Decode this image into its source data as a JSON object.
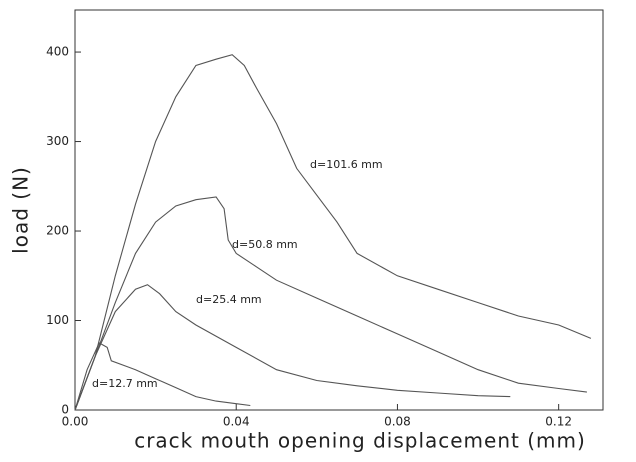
{
  "chart_data": {
    "type": "line",
    "xlabel": "crack mouth opening displacement (mm)",
    "ylabel": "load (N)",
    "xlim": [
      0,
      0.131
    ],
    "ylim": [
      0,
      447
    ],
    "xticks": [
      {
        "value": 0,
        "label": "0.00"
      },
      0.04,
      0.08,
      0.12
    ],
    "yticks": [
      0,
      100,
      200,
      300,
      400
    ],
    "grid": false,
    "series": [
      {
        "name": "d=101.6 mm",
        "color": "#555555",
        "x": [
          0,
          0.005,
          0.01,
          0.015,
          0.02,
          0.025,
          0.03,
          0.035,
          0.039,
          0.042,
          0.045,
          0.05,
          0.055,
          0.06,
          0.065,
          0.07,
          0.08,
          0.09,
          0.1,
          0.11,
          0.12,
          0.128
        ],
        "values": [
          0,
          60,
          150,
          230,
          300,
          350,
          385,
          392,
          397,
          385,
          360,
          320,
          270,
          240,
          210,
          175,
          150,
          135,
          120,
          105,
          95,
          80
        ]
      },
      {
        "name": "d=50.8 mm",
        "color": "#555555",
        "x": [
          0,
          0.005,
          0.01,
          0.015,
          0.02,
          0.025,
          0.03,
          0.035,
          0.037,
          0.038,
          0.04,
          0.045,
          0.05,
          0.06,
          0.07,
          0.08,
          0.09,
          0.1,
          0.11,
          0.12,
          0.127
        ],
        "values": [
          0,
          60,
          120,
          175,
          210,
          228,
          235,
          238,
          225,
          190,
          175,
          160,
          145,
          125,
          105,
          85,
          65,
          45,
          30,
          24,
          20
        ]
      },
      {
        "name": "d=25.4 mm",
        "color": "#555555",
        "x": [
          0,
          0.005,
          0.01,
          0.015,
          0.018,
          0.021,
          0.025,
          0.03,
          0.04,
          0.05,
          0.06,
          0.07,
          0.08,
          0.09,
          0.1,
          0.108
        ],
        "values": [
          0,
          60,
          110,
          135,
          140,
          130,
          110,
          95,
          70,
          45,
          33,
          27,
          22,
          19,
          16,
          15
        ]
      },
      {
        "name": "d=12.7 mm",
        "color": "#555555",
        "x": [
          0,
          0.003,
          0.006,
          0.008,
          0.009,
          0.015,
          0.02,
          0.025,
          0.03,
          0.035,
          0.04,
          0.0435
        ],
        "values": [
          0,
          45,
          75,
          70,
          55,
          45,
          35,
          25,
          15,
          10,
          7,
          5
        ]
      }
    ]
  }
}
